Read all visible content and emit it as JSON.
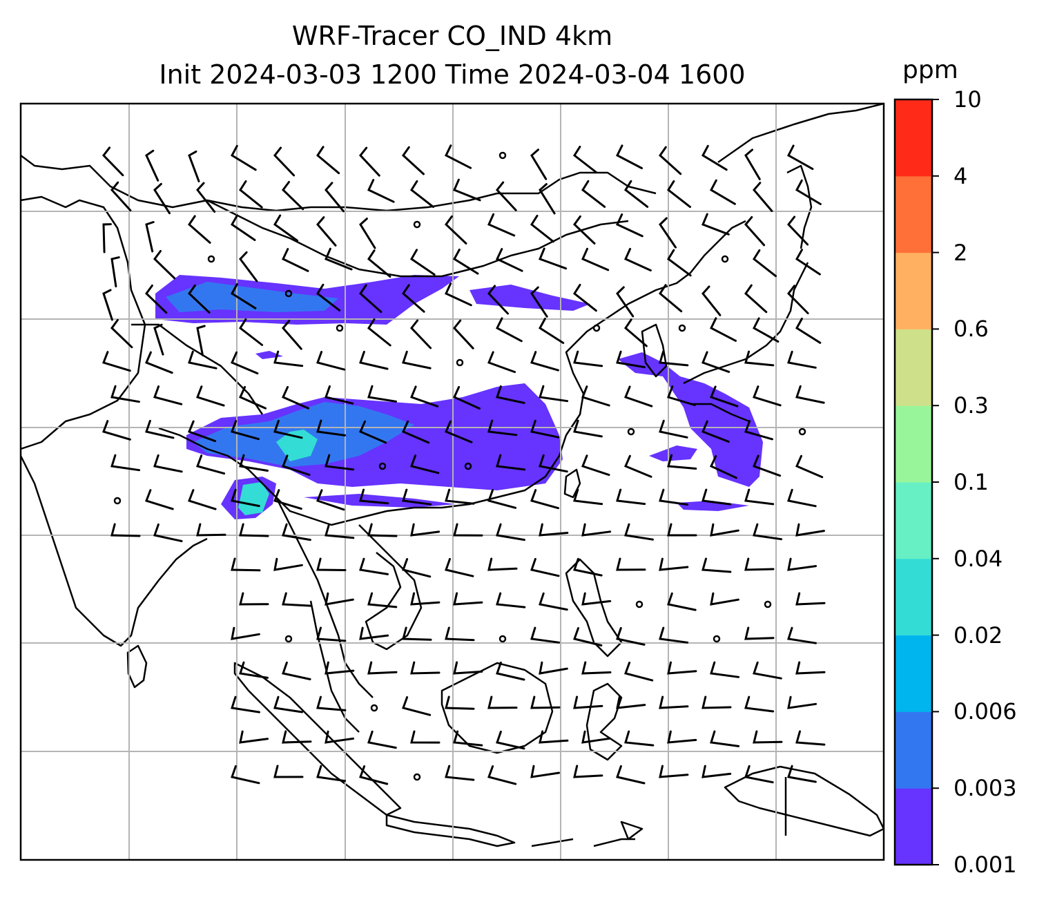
{
  "title_line1": "WRF-Tracer CO_IND 4km",
  "title_line2": "Init 2024-03-03 1200 Time 2024-03-04 1600",
  "colorbar": {
    "unit": "ppm",
    "levels": [
      "0.001",
      "0.003",
      "0.006",
      "0.02",
      "0.04",
      "0.1",
      "0.3",
      "0.6",
      "2",
      "4",
      "10"
    ],
    "colors": [
      "#6633ff",
      "#3377f0",
      "#00b4ee",
      "#33ddd5",
      "#66f0c4",
      "#99f59a",
      "#cfe08a",
      "#ffb060",
      "#ff7038",
      "#ff2a18"
    ]
  },
  "map": {
    "background": "#ffffff",
    "gridline_color": "#b4b4b4",
    "coastline_color": "#000000",
    "tracer_fill_main": "#6633ff",
    "wind_barb_color": "#000000"
  }
}
